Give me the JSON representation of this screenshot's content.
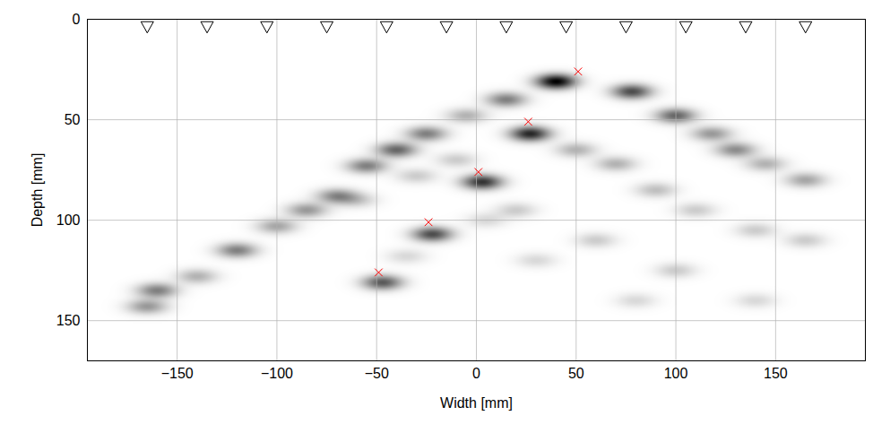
{
  "chart_data": {
    "type": "image",
    "xlabel": "Width [mm]",
    "ylabel": "Depth [mm]",
    "xlim": [
      -195,
      195
    ],
    "ylim": [
      0,
      170
    ],
    "xticks": [
      -150,
      -100,
      -50,
      0,
      50,
      100,
      150
    ],
    "yticks": [
      0,
      50,
      100,
      150
    ],
    "grid": true,
    "intensity_lim": [
      0,
      1
    ],
    "blobs": {
      "x": [
        40,
        27,
        3,
        -22,
        -47,
        15,
        -5,
        -25,
        -40,
        -55,
        -70,
        -85,
        -100,
        -120,
        -140,
        -160,
        -165,
        78,
        100,
        118,
        130,
        145,
        165,
        50,
        70,
        90,
        110,
        140,
        165,
        20,
        60,
        100,
        140,
        30,
        80,
        -10,
        -30,
        -60,
        5,
        -35
      ],
      "y": [
        31,
        57,
        81,
        107,
        131,
        40,
        48,
        57,
        65,
        73,
        88,
        95,
        103,
        115,
        128,
        135,
        143,
        36,
        48,
        57,
        65,
        72,
        80,
        65,
        72,
        85,
        95,
        105,
        110,
        95,
        110,
        125,
        140,
        120,
        140,
        70,
        78,
        90,
        100,
        118
      ],
      "values": [
        1.0,
        0.85,
        0.8,
        0.7,
        0.65,
        0.5,
        0.3,
        0.5,
        0.6,
        0.5,
        0.45,
        0.4,
        0.35,
        0.5,
        0.3,
        0.5,
        0.4,
        0.7,
        0.6,
        0.4,
        0.45,
        0.3,
        0.35,
        0.3,
        0.3,
        0.25,
        0.2,
        0.2,
        0.2,
        0.2,
        0.2,
        0.2,
        0.15,
        0.15,
        0.15,
        0.2,
        0.2,
        0.2,
        0.15,
        0.15
      ]
    },
    "transducers": {
      "x": [
        -165,
        -135,
        -105,
        -75,
        -45,
        -15,
        15,
        45,
        75,
        105,
        135,
        165
      ],
      "y": [
        4,
        4,
        4,
        4,
        4,
        4,
        4,
        4,
        4,
        4,
        4,
        4
      ],
      "marker": "triangle-down",
      "color": "#000000"
    },
    "targets": {
      "x": [
        51,
        26,
        1,
        -24,
        -49
      ],
      "y": [
        26,
        51,
        76,
        101,
        126
      ],
      "marker": "x",
      "color": "#ff0000"
    }
  }
}
